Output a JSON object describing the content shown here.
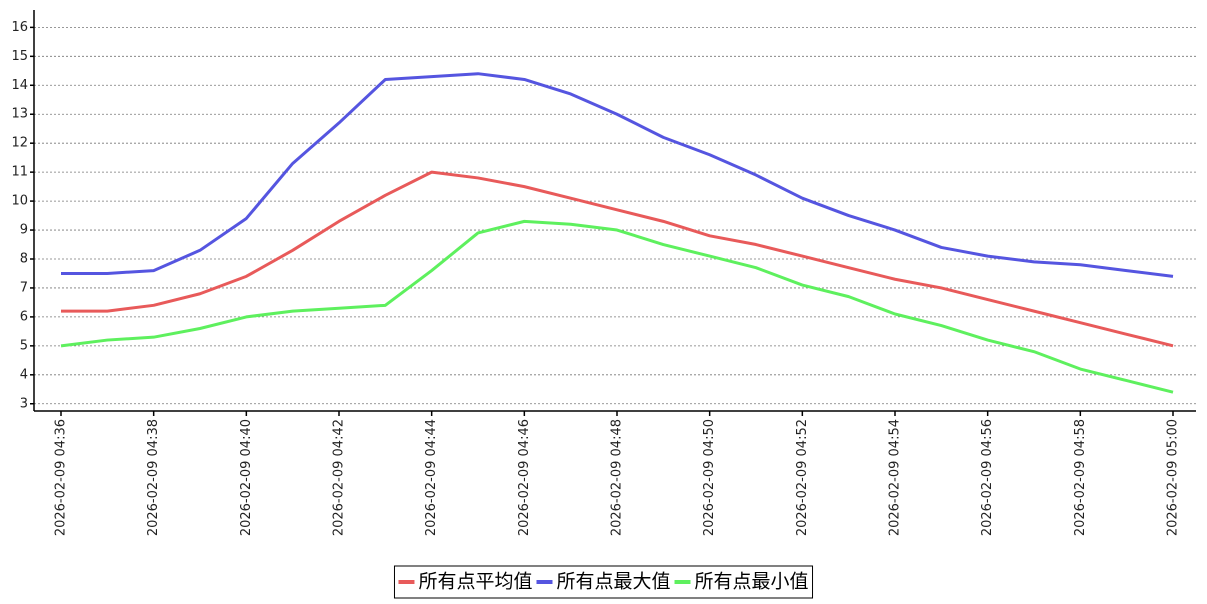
{
  "chart_data": {
    "type": "line",
    "categories": [
      "2026-02-09 04:36",
      null,
      "2026-02-09 04:38",
      null,
      "2026-02-09 04:40",
      null,
      "2026-02-09 04:42",
      null,
      "2026-02-09 04:44",
      null,
      "2026-02-09 04:46",
      null,
      "2026-02-09 04:48",
      null,
      "2026-02-09 04:50",
      null,
      "2026-02-09 04:52",
      null,
      "2026-02-09 04:54",
      null,
      "2026-02-09 04:56",
      null,
      "2026-02-09 04:58",
      null,
      "2026-02-09 05:00"
    ],
    "series": [
      {
        "name": "所有点平均值",
        "color": "#e85a5a",
        "values": [
          6.2,
          6.2,
          6.4,
          6.8,
          7.4,
          8.3,
          9.3,
          10.2,
          11.0,
          10.8,
          10.5,
          10.1,
          9.7,
          9.3,
          8.8,
          8.5,
          8.1,
          7.7,
          7.3,
          7.0,
          6.6,
          6.2,
          5.8,
          5.4,
          5.0
        ]
      },
      {
        "name": "所有点最大值",
        "color": "#5555e0",
        "values": [
          7.5,
          7.5,
          7.6,
          8.3,
          9.4,
          11.3,
          12.7,
          14.2,
          14.3,
          14.4,
          14.2,
          13.7,
          13.0,
          12.2,
          11.6,
          10.9,
          10.1,
          9.5,
          9.0,
          8.4,
          8.1,
          7.9,
          7.8,
          7.6,
          7.4
        ]
      },
      {
        "name": "所有点最小值",
        "color": "#5ef05e",
        "values": [
          5.0,
          5.2,
          5.3,
          5.6,
          6.0,
          6.2,
          6.3,
          6.4,
          7.6,
          8.9,
          9.3,
          9.2,
          9.0,
          8.5,
          8.1,
          7.7,
          7.1,
          6.7,
          6.1,
          5.7,
          5.2,
          4.8,
          4.2,
          3.8,
          3.4
        ]
      }
    ],
    "ylim": [
      2.75,
      16.6
    ],
    "yticks": [
      3,
      4,
      5,
      6,
      7,
      8,
      9,
      10,
      11,
      12,
      13,
      14,
      15,
      16
    ],
    "grid": true,
    "legend": "bottom"
  }
}
